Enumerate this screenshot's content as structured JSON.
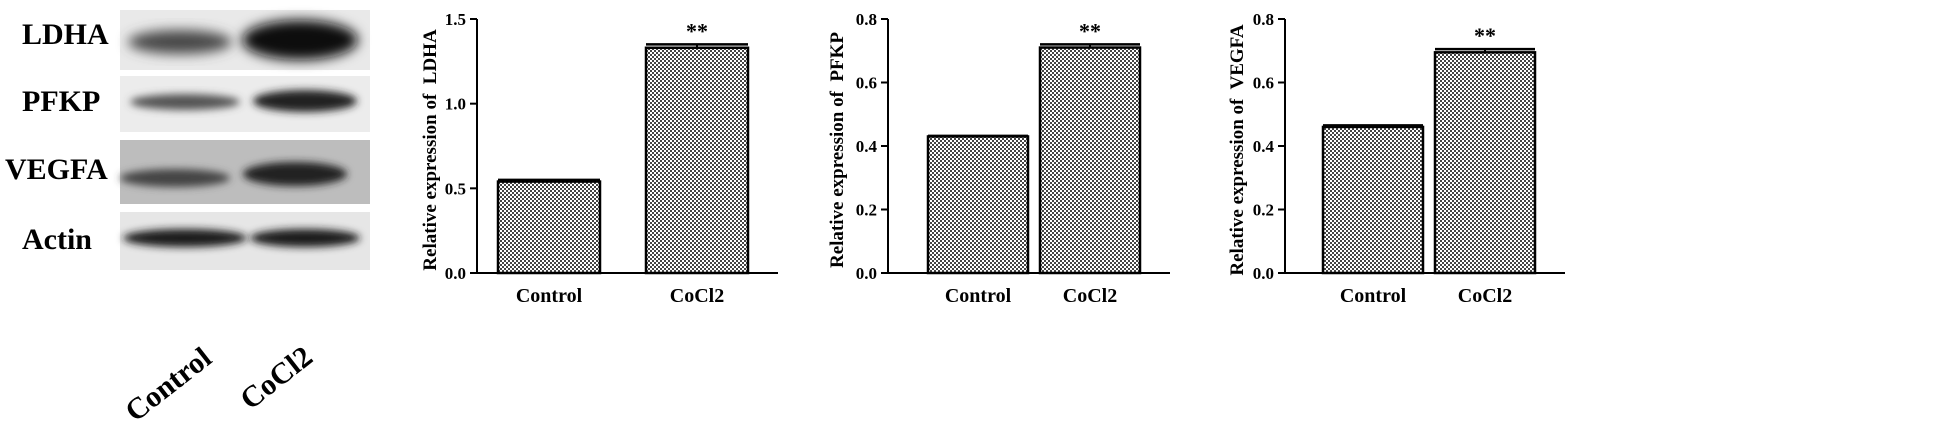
{
  "blot": {
    "rows": [
      "LDHA",
      "PFKP",
      "VEGFA",
      "Actin"
    ],
    "lanes": [
      "Control",
      "CoCl2"
    ]
  },
  "chart_data": [
    {
      "type": "bar",
      "categories": [
        "Control",
        "CoCl2"
      ],
      "values": [
        0.54,
        1.33
      ],
      "errors": [
        0.01,
        0.02
      ],
      "annotations": [
        "",
        "**"
      ],
      "ylabel": "Relative expression of  LDHA",
      "ylim": [
        0,
        1.5
      ],
      "yticks": [
        "0.0",
        "0.5",
        "1.0",
        "1.5"
      ]
    },
    {
      "type": "bar",
      "categories": [
        "Control",
        "CoCl2"
      ],
      "values": [
        0.43,
        0.71
      ],
      "errors": [
        0.002,
        0.01
      ],
      "annotations": [
        "",
        "**"
      ],
      "ylabel": "Relative expression of  PFKP",
      "ylim": [
        0,
        0.8
      ],
      "yticks": [
        "0.0",
        "0.2",
        "0.4",
        "0.6",
        "0.8"
      ]
    },
    {
      "type": "bar",
      "categories": [
        "Control",
        "CoCl2"
      ],
      "values": [
        0.46,
        0.695
      ],
      "errors": [
        0.005,
        0.01
      ],
      "annotations": [
        "",
        "**"
      ],
      "ylabel": "Relative expression of  VEGFA",
      "ylim": [
        0,
        0.8
      ],
      "yticks": [
        "0.0",
        "0.2",
        "0.4",
        "0.6",
        "0.8"
      ]
    }
  ]
}
